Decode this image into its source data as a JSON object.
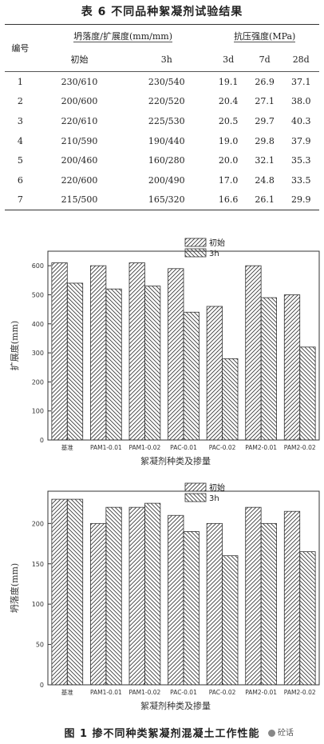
{
  "table": {
    "title": "表 6   不同品种絮凝剂试验结果",
    "col_id": "编号",
    "group_slump": "坍落度/扩展度(mm/mm)",
    "group_strength": "抗压强度(MPa)",
    "sub_headers": [
      "初始",
      "3h",
      "3d",
      "7d",
      "28d"
    ],
    "rows": [
      [
        "1",
        "230/610",
        "230/540",
        "19.1",
        "26.9",
        "37.1"
      ],
      [
        "2",
        "200/600",
        "220/520",
        "20.4",
        "27.1",
        "38.0"
      ],
      [
        "3",
        "220/610",
        "225/530",
        "20.5",
        "29.7",
        "40.3"
      ],
      [
        "4",
        "210/590",
        "190/440",
        "19.0",
        "29.8",
        "37.9"
      ],
      [
        "5",
        "200/460",
        "160/280",
        "20.0",
        "32.1",
        "35.3"
      ],
      [
        "6",
        "220/600",
        "200/490",
        "17.0",
        "24.8",
        "33.5"
      ],
      [
        "7",
        "215/500",
        "165/320",
        "16.6",
        "26.1",
        "29.9"
      ]
    ]
  },
  "chart_data": [
    {
      "type": "bar",
      "categories": [
        "基准",
        "PAM1-0.01",
        "PAM1-0.02",
        "PAC-0.01",
        "PAC-0.02",
        "PAM2-0.01",
        "PAM2-0.02"
      ],
      "series": [
        {
          "name": "初始",
          "values": [
            610,
            600,
            610,
            590,
            460,
            600,
            500
          ]
        },
        {
          "name": "3h",
          "values": [
            540,
            520,
            530,
            440,
            280,
            490,
            320
          ]
        }
      ],
      "xlabel": "絮凝剂种类及掺量",
      "ylabel": "扩展度(mm)",
      "ylim": [
        0,
        650
      ],
      "yticks": [
        0,
        100,
        200,
        300,
        400,
        500,
        600
      ],
      "legend": "top-center"
    },
    {
      "type": "bar",
      "categories": [
        "基准",
        "PAM1-0.01",
        "PAM1-0.02",
        "PAC-0.01",
        "PAC-0.02",
        "PAM2-0.01",
        "PAM2-0.02"
      ],
      "series": [
        {
          "name": "初始",
          "values": [
            230,
            200,
            220,
            210,
            200,
            220,
            215
          ]
        },
        {
          "name": "3h",
          "values": [
            230,
            220,
            225,
            190,
            160,
            200,
            165
          ]
        }
      ],
      "xlabel": "絮凝剂种类及掺量",
      "ylabel": "坍落度(mm)",
      "ylim": [
        0,
        240
      ],
      "yticks": [
        0,
        50,
        100,
        150,
        200
      ],
      "legend": "top-center"
    }
  ],
  "figure_caption": "图 1   掺不同种类絮凝剂混凝土工作性能",
  "watermark": "砼话",
  "colors": {
    "bar_stroke": "#333333",
    "axis": "#333333"
  }
}
